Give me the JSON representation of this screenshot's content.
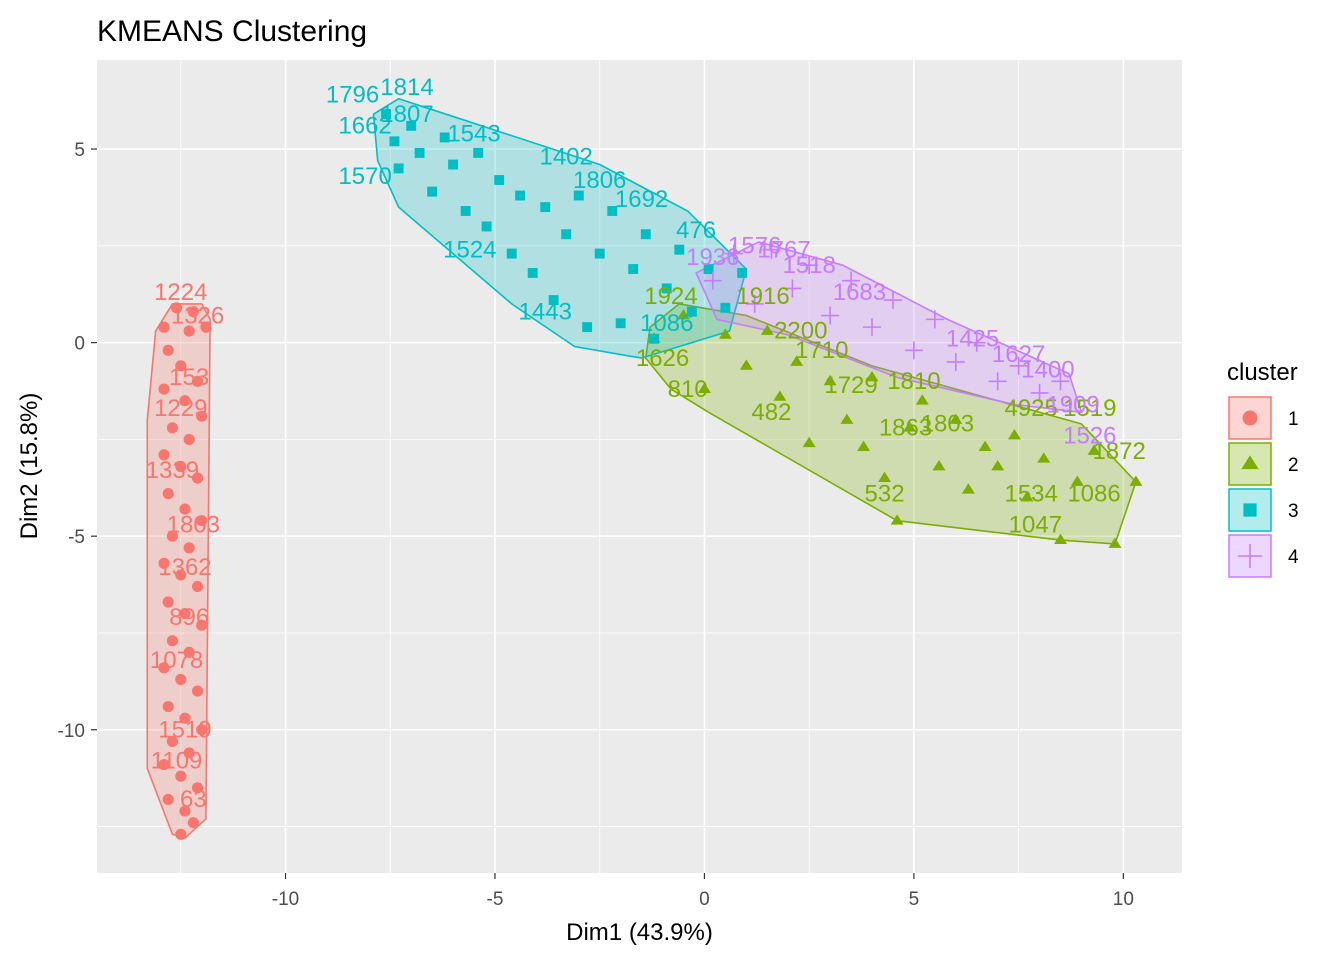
{
  "chart_data": {
    "type": "scatter",
    "title": "KMEANS Clustering",
    "xlabel": "Dim1 (43.9%)",
    "ylabel": "Dim2 (15.8%)",
    "xlim": [
      -14.5,
      11.4
    ],
    "ylim": [
      -13.7,
      7.3
    ],
    "xticks": [
      -10,
      -5,
      0,
      5,
      10
    ],
    "yticks": [
      5,
      0,
      -5,
      -10
    ],
    "xtick_labels": [
      "-10",
      "-5",
      "0",
      "5",
      "10"
    ],
    "ytick_labels": [
      "5",
      "0",
      "-5",
      "-10"
    ],
    "grid": true,
    "legend_title": "cluster",
    "legend_position": "right",
    "series": [
      {
        "name": "1",
        "color": "#F8766D",
        "marker": "circle",
        "hull": [
          [
            -13.3,
            -11.0
          ],
          [
            -12.7,
            -12.7
          ],
          [
            -12.4,
            -12.8
          ],
          [
            -11.9,
            -12.3
          ],
          [
            -11.8,
            0.6
          ],
          [
            -12.0,
            1.0
          ],
          [
            -12.7,
            1.0
          ],
          [
            -13.1,
            0.3
          ],
          [
            -13.3,
            -2.0
          ]
        ],
        "points": [
          [
            -12.6,
            0.9
          ],
          [
            -12.2,
            0.8
          ],
          [
            -12.9,
            0.4
          ],
          [
            -12.3,
            0.3
          ],
          [
            -11.9,
            0.4
          ],
          [
            -12.8,
            -0.2
          ],
          [
            -12.5,
            -0.6
          ],
          [
            -12.1,
            -1.0
          ],
          [
            -12.9,
            -1.2
          ],
          [
            -12.4,
            -1.5
          ],
          [
            -12.0,
            -1.9
          ],
          [
            -12.7,
            -2.2
          ],
          [
            -12.3,
            -2.5
          ],
          [
            -12.9,
            -2.9
          ],
          [
            -12.5,
            -3.2
          ],
          [
            -12.1,
            -3.5
          ],
          [
            -12.8,
            -3.9
          ],
          [
            -12.4,
            -4.3
          ],
          [
            -12.0,
            -4.6
          ],
          [
            -12.7,
            -5.0
          ],
          [
            -12.3,
            -5.3
          ],
          [
            -12.9,
            -5.7
          ],
          [
            -12.5,
            -6.0
          ],
          [
            -12.1,
            -6.3
          ],
          [
            -12.8,
            -6.7
          ],
          [
            -12.4,
            -7.0
          ],
          [
            -12.0,
            -7.3
          ],
          [
            -12.7,
            -7.7
          ],
          [
            -12.3,
            -8.0
          ],
          [
            -12.9,
            -8.4
          ],
          [
            -12.5,
            -8.7
          ],
          [
            -12.1,
            -9.0
          ],
          [
            -12.8,
            -9.4
          ],
          [
            -12.4,
            -9.7
          ],
          [
            -12.0,
            -10.0
          ],
          [
            -12.7,
            -10.3
          ],
          [
            -12.3,
            -10.6
          ],
          [
            -12.9,
            -10.9
          ],
          [
            -12.5,
            -11.2
          ],
          [
            -12.1,
            -11.5
          ],
          [
            -12.8,
            -11.8
          ],
          [
            -12.4,
            -12.1
          ],
          [
            -12.2,
            -12.4
          ],
          [
            -12.5,
            -12.7
          ]
        ],
        "labels": [
          {
            "text": "1224",
            "x": -12.5,
            "y": 1.1
          },
          {
            "text": "1326",
            "x": -12.1,
            "y": 0.5
          },
          {
            "text": "153",
            "x": -12.3,
            "y": -1.1
          },
          {
            "text": "1229",
            "x": -12.5,
            "y": -1.9
          },
          {
            "text": "1339",
            "x": -12.7,
            "y": -3.5
          },
          {
            "text": "1803",
            "x": -12.2,
            "y": -4.9
          },
          {
            "text": "1362",
            "x": -12.4,
            "y": -6.0
          },
          {
            "text": "896",
            "x": -12.3,
            "y": -7.3
          },
          {
            "text": "1078",
            "x": -12.6,
            "y": -8.4
          },
          {
            "text": "1519",
            "x": -12.4,
            "y": -10.2
          },
          {
            "text": "1109",
            "x": -12.6,
            "y": -11.0
          },
          {
            "text": "63",
            "x": -12.2,
            "y": -12.0
          }
        ]
      },
      {
        "name": "2",
        "color": "#7CAE00",
        "marker": "triangle",
        "hull": [
          [
            -0.8,
            -1.2
          ],
          [
            0.1,
            -1.8
          ],
          [
            4.6,
            -4.6
          ],
          [
            8.5,
            -5.1
          ],
          [
            9.8,
            -5.2
          ],
          [
            10.3,
            -3.6
          ],
          [
            9.0,
            -2.1
          ],
          [
            4.0,
            -0.6
          ],
          [
            1.0,
            0.7
          ],
          [
            -0.6,
            1.0
          ],
          [
            -1.3,
            0.4
          ],
          [
            -1.4,
            -0.4
          ]
        ],
        "points": [
          [
            -1.2,
            0.1
          ],
          [
            -0.5,
            0.7
          ],
          [
            0.0,
            -1.2
          ],
          [
            0.5,
            0.2
          ],
          [
            1.0,
            -0.6
          ],
          [
            1.5,
            0.3
          ],
          [
            1.8,
            -1.4
          ],
          [
            2.2,
            -0.5
          ],
          [
            2.5,
            -2.6
          ],
          [
            3.0,
            -1.0
          ],
          [
            3.4,
            -2.0
          ],
          [
            3.8,
            -2.7
          ],
          [
            4.0,
            -0.9
          ],
          [
            4.3,
            -3.5
          ],
          [
            4.6,
            -4.6
          ],
          [
            4.9,
            -2.2
          ],
          [
            5.2,
            -1.5
          ],
          [
            5.6,
            -3.2
          ],
          [
            6.0,
            -2.0
          ],
          [
            6.3,
            -3.8
          ],
          [
            6.7,
            -2.7
          ],
          [
            7.0,
            -3.2
          ],
          [
            7.4,
            -2.4
          ],
          [
            7.7,
            -4.0
          ],
          [
            8.1,
            -3.0
          ],
          [
            8.5,
            -5.1
          ],
          [
            8.9,
            -3.6
          ],
          [
            9.3,
            -2.8
          ],
          [
            9.8,
            -5.2
          ],
          [
            10.3,
            -3.6
          ]
        ],
        "labels": [
          {
            "text": "1924",
            "x": -0.8,
            "y": 1.0
          },
          {
            "text": "1916",
            "x": 1.4,
            "y": 1.0
          },
          {
            "text": "1626",
            "x": -1.0,
            "y": -0.6
          },
          {
            "text": "810",
            "x": -0.4,
            "y": -1.4
          },
          {
            "text": "2200",
            "x": 2.3,
            "y": 0.1
          },
          {
            "text": "1710",
            "x": 2.8,
            "y": -0.4
          },
          {
            "text": "482",
            "x": 1.6,
            "y": -2.0
          },
          {
            "text": "1729",
            "x": 3.5,
            "y": -1.3
          },
          {
            "text": "1810",
            "x": 5.0,
            "y": -1.2
          },
          {
            "text": "1863",
            "x": 4.8,
            "y": -2.4
          },
          {
            "text": "1803",
            "x": 5.8,
            "y": -2.3
          },
          {
            "text": "4925",
            "x": 7.8,
            "y": -1.9
          },
          {
            "text": "1519",
            "x": 9.2,
            "y": -1.9
          },
          {
            "text": "1872",
            "x": 9.9,
            "y": -3.0
          },
          {
            "text": "1534",
            "x": 7.8,
            "y": -4.1
          },
          {
            "text": "532",
            "x": 4.3,
            "y": -4.1
          },
          {
            "text": "1047",
            "x": 7.9,
            "y": -4.9
          },
          {
            "text": "1086",
            "x": 9.3,
            "y": -4.1
          }
        ]
      },
      {
        "name": "3",
        "color": "#00BFC4",
        "marker": "square",
        "hull": [
          [
            -7.3,
            3.5
          ],
          [
            -7.8,
            4.7
          ],
          [
            -7.9,
            5.9
          ],
          [
            -7.3,
            6.3
          ],
          [
            -5.6,
            5.7
          ],
          [
            -2.5,
            4.6
          ],
          [
            -0.4,
            3.4
          ],
          [
            1.0,
            1.9
          ],
          [
            0.6,
            0.3
          ],
          [
            -1.5,
            -0.4
          ],
          [
            -3.1,
            -0.1
          ],
          [
            -4.6,
            1.0
          ]
        ],
        "points": [
          [
            -7.6,
            5.9
          ],
          [
            -7.4,
            5.2
          ],
          [
            -7.3,
            4.5
          ],
          [
            -7.0,
            5.6
          ],
          [
            -6.8,
            4.9
          ],
          [
            -6.5,
            3.9
          ],
          [
            -6.2,
            5.3
          ],
          [
            -6.0,
            4.6
          ],
          [
            -5.7,
            3.4
          ],
          [
            -5.4,
            4.9
          ],
          [
            -5.2,
            3.0
          ],
          [
            -4.9,
            4.2
          ],
          [
            -4.6,
            2.3
          ],
          [
            -4.4,
            3.8
          ],
          [
            -4.1,
            1.8
          ],
          [
            -3.8,
            3.5
          ],
          [
            -3.6,
            1.1
          ],
          [
            -3.3,
            2.8
          ],
          [
            -3.0,
            3.8
          ],
          [
            -2.8,
            0.4
          ],
          [
            -2.5,
            2.3
          ],
          [
            -2.2,
            3.4
          ],
          [
            -2.0,
            0.5
          ],
          [
            -1.7,
            1.9
          ],
          [
            -1.4,
            2.8
          ],
          [
            -1.2,
            0.1
          ],
          [
            -0.9,
            1.4
          ],
          [
            -0.6,
            2.4
          ],
          [
            -0.3,
            0.8
          ],
          [
            0.1,
            1.9
          ],
          [
            0.5,
            0.9
          ],
          [
            0.9,
            1.8
          ]
        ],
        "labels": [
          {
            "text": "1796",
            "x": -8.4,
            "y": 6.2
          },
          {
            "text": "1814",
            "x": -7.1,
            "y": 6.4
          },
          {
            "text": "1807",
            "x": -7.1,
            "y": 5.7
          },
          {
            "text": "1662",
            "x": -8.1,
            "y": 5.4
          },
          {
            "text": "1543",
            "x": -5.5,
            "y": 5.2
          },
          {
            "text": "1402",
            "x": -3.3,
            "y": 4.6
          },
          {
            "text": "1806",
            "x": -2.5,
            "y": 4.0
          },
          {
            "text": "1692",
            "x": -1.5,
            "y": 3.5
          },
          {
            "text": "1570",
            "x": -8.1,
            "y": 4.1
          },
          {
            "text": "1524",
            "x": -5.6,
            "y": 2.2
          },
          {
            "text": "1443",
            "x": -3.8,
            "y": 0.6
          },
          {
            "text": "476",
            "x": -0.2,
            "y": 2.7
          },
          {
            "text": "1086",
            "x": -0.9,
            "y": 0.3
          }
        ]
      },
      {
        "name": "4",
        "color": "#C77CFF",
        "marker": "plus",
        "hull": [
          [
            -0.2,
            1.8
          ],
          [
            1.3,
            2.6
          ],
          [
            3.3,
            2.0
          ],
          [
            5.8,
            0.6
          ],
          [
            8.7,
            -0.8
          ],
          [
            9.0,
            -1.8
          ],
          [
            7.4,
            -1.6
          ],
          [
            4.6,
            -0.9
          ],
          [
            2.0,
            0.2
          ],
          [
            0.3,
            0.6
          ]
        ],
        "points": [
          [
            0.2,
            1.6
          ],
          [
            0.7,
            2.3
          ],
          [
            1.2,
            1.0
          ],
          [
            1.6,
            2.4
          ],
          [
            2.1,
            1.4
          ],
          [
            2.5,
            2.0
          ],
          [
            3.0,
            0.7
          ],
          [
            3.5,
            1.6
          ],
          [
            4.0,
            0.4
          ],
          [
            4.5,
            1.1
          ],
          [
            5.0,
            -0.2
          ],
          [
            5.5,
            0.6
          ],
          [
            6.0,
            -0.5
          ],
          [
            6.5,
            0.0
          ],
          [
            7.0,
            -1.0
          ],
          [
            7.5,
            -0.6
          ],
          [
            8.0,
            -1.3
          ],
          [
            8.5,
            -1.0
          ]
        ],
        "labels": [
          {
            "text": "1936",
            "x": 0.2,
            "y": 2.0
          },
          {
            "text": "1576",
            "x": 1.2,
            "y": 2.3
          },
          {
            "text": "1767",
            "x": 1.9,
            "y": 2.2
          },
          {
            "text": "1518",
            "x": 2.5,
            "y": 1.8
          },
          {
            "text": "1683",
            "x": 3.7,
            "y": 1.1
          },
          {
            "text": "1425",
            "x": 6.4,
            "y": -0.1
          },
          {
            "text": "1627",
            "x": 7.5,
            "y": -0.5
          },
          {
            "text": "1400",
            "x": 8.2,
            "y": -0.9
          },
          {
            "text": "1909",
            "x": 8.8,
            "y": -1.8
          },
          {
            "text": "1526",
            "x": 9.2,
            "y": -2.6
          }
        ]
      }
    ]
  }
}
